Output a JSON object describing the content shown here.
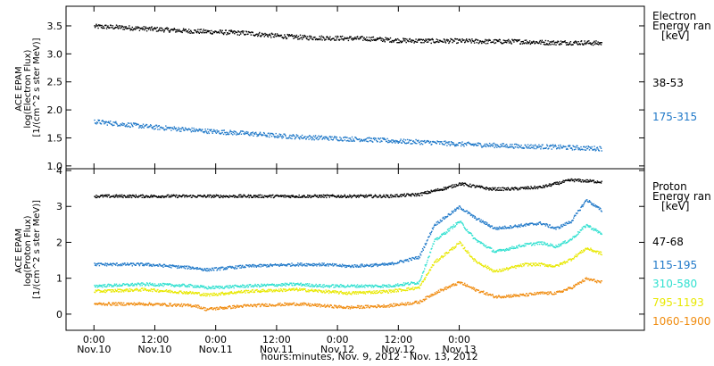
{
  "chart_data": [
    {
      "type": "scatter",
      "panel": "electron",
      "ylabel": "ACE EPAM\nlog(Electron Flux)\n[1/(cm^2 s ster MeV)]",
      "ylim": [
        0.95,
        3.85
      ],
      "yticks": [
        1.0,
        1.5,
        2.0,
        2.5,
        3.0,
        3.5
      ],
      "ytick_labels": [
        "1.0",
        "1.5",
        "2.0",
        "2.5",
        "3.0",
        "3.5"
      ],
      "legend_title": [
        "Electron",
        "Energy ran",
        "[keV]"
      ],
      "series": [
        {
          "name": "38-53",
          "color": "#000000",
          "x": [
            0,
            6,
            12,
            18,
            24,
            30,
            36,
            42,
            48,
            54,
            60,
            66,
            72,
            78,
            84,
            90,
            96,
            100
          ],
          "y": [
            3.5,
            3.48,
            3.45,
            3.42,
            3.4,
            3.38,
            3.33,
            3.3,
            3.29,
            3.28,
            3.25,
            3.24,
            3.24,
            3.23,
            3.23,
            3.21,
            3.21,
            3.2
          ]
        },
        {
          "name": "175-315",
          "color": "#1f78c8",
          "x": [
            0,
            6,
            12,
            18,
            24,
            30,
            36,
            42,
            48,
            54,
            60,
            66,
            72,
            78,
            84,
            90,
            96,
            100
          ],
          "y": [
            1.8,
            1.75,
            1.7,
            1.66,
            1.62,
            1.59,
            1.55,
            1.52,
            1.5,
            1.48,
            1.45,
            1.43,
            1.4,
            1.38,
            1.36,
            1.35,
            1.33,
            1.32
          ]
        }
      ]
    },
    {
      "type": "scatter",
      "panel": "proton",
      "ylabel": "ACE EPAM\nlog(Proton Flux)\n[1/(cm^2 s ster MeV)]",
      "ylim": [
        -0.45,
        4.05
      ],
      "yticks": [
        0,
        1,
        2,
        3,
        4
      ],
      "ytick_labels": [
        "0",
        "1",
        "2",
        "3",
        "4"
      ],
      "legend_title": [
        "Proton",
        "Energy ran",
        "[keV]"
      ],
      "series": [
        {
          "name": "47-68",
          "color": "#000000",
          "x": [
            0,
            10,
            20,
            30,
            40,
            50,
            58,
            64,
            70,
            72,
            78,
            82,
            88,
            94,
            100
          ],
          "y": [
            3.3,
            3.3,
            3.3,
            3.3,
            3.3,
            3.3,
            3.3,
            3.35,
            3.55,
            3.65,
            3.5,
            3.5,
            3.55,
            3.75,
            3.7
          ]
        },
        {
          "name": "115-195",
          "color": "#1f78c8",
          "x": [
            0,
            10,
            20,
            22,
            30,
            40,
            45,
            50,
            58,
            64,
            67,
            72,
            75,
            79,
            85,
            88,
            91,
            94,
            97,
            100
          ],
          "y": [
            1.4,
            1.4,
            1.3,
            1.25,
            1.35,
            1.4,
            1.4,
            1.35,
            1.4,
            1.6,
            2.5,
            3.0,
            2.7,
            2.4,
            2.5,
            2.55,
            2.4,
            2.6,
            3.2,
            2.9
          ]
        },
        {
          "name": "310-580",
          "color": "#30e0d0",
          "x": [
            0,
            10,
            20,
            22,
            30,
            40,
            45,
            50,
            58,
            64,
            67,
            72,
            75,
            79,
            85,
            88,
            91,
            94,
            97,
            100
          ],
          "y": [
            0.8,
            0.85,
            0.8,
            0.75,
            0.8,
            0.85,
            0.8,
            0.8,
            0.8,
            0.9,
            2.05,
            2.6,
            2.1,
            1.75,
            1.95,
            2.0,
            1.9,
            2.1,
            2.5,
            2.25
          ]
        },
        {
          "name": "795-1193",
          "color": "#e8e800",
          "x": [
            0,
            10,
            20,
            22,
            30,
            40,
            45,
            50,
            58,
            64,
            67,
            72,
            75,
            79,
            85,
            88,
            91,
            94,
            97,
            100
          ],
          "y": [
            0.65,
            0.7,
            0.6,
            0.55,
            0.65,
            0.7,
            0.65,
            0.6,
            0.65,
            0.75,
            1.45,
            2.0,
            1.5,
            1.2,
            1.4,
            1.4,
            1.35,
            1.55,
            1.85,
            1.7
          ]
        },
        {
          "name": "1060-1900",
          "color": "#f08c10",
          "x": [
            0,
            10,
            20,
            22,
            30,
            40,
            45,
            50,
            58,
            64,
            67,
            72,
            75,
            79,
            85,
            88,
            91,
            94,
            97,
            100
          ],
          "y": [
            0.3,
            0.3,
            0.25,
            0.15,
            0.25,
            0.3,
            0.25,
            0.2,
            0.25,
            0.35,
            0.6,
            0.9,
            0.7,
            0.5,
            0.55,
            0.6,
            0.6,
            0.75,
            1.0,
            0.9
          ]
        }
      ]
    }
  ],
  "xaxis": {
    "xlim": [
      -5.5,
      108.5
    ],
    "end_hour": 100,
    "ticks": [
      {
        "x": 0,
        "time": "0:00",
        "date": "Nov.10"
      },
      {
        "x": 12,
        "time": "12:00",
        "date": "Nov.10"
      },
      {
        "x": 24,
        "time": "0:00",
        "date": "Nov.11"
      },
      {
        "x": 36,
        "time": "12:00",
        "date": "Nov.11"
      },
      {
        "x": 48,
        "time": "0:00",
        "date": "Nov.12"
      },
      {
        "x": 60,
        "time": "12:00",
        "date": "Nov.12"
      },
      {
        "x": 72,
        "time": "0:00",
        "date": "Nov.13"
      }
    ],
    "label": "hours:minutes, Nov. 9, 2012 - Nov. 13, 2012"
  }
}
